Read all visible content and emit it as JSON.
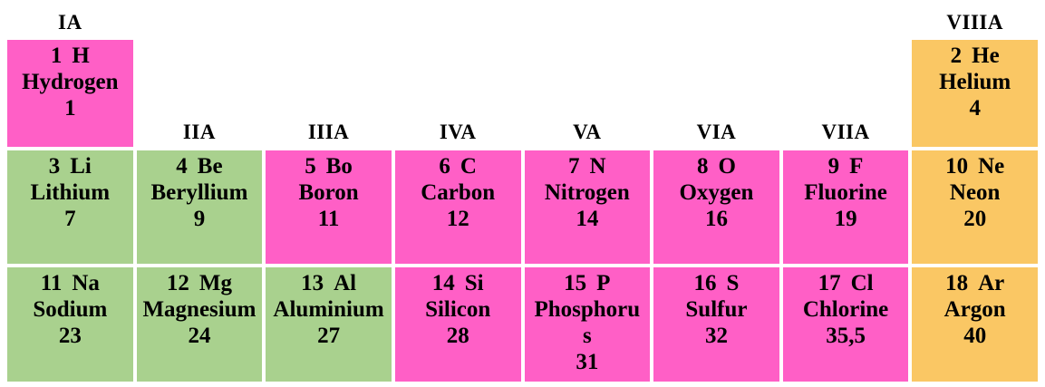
{
  "palette": {
    "pink": "#FF5FC6",
    "green": "#A9D18E",
    "orange": "#FAC764"
  },
  "text_color": "#000000",
  "group_labels": {
    "top_left": "IA",
    "top_right": "VIIIA",
    "inner": [
      "IIA",
      "IIIA",
      "IVA",
      "VA",
      "VIA",
      "VIIA"
    ]
  },
  "elements": [
    {
      "number": "1",
      "symbol": "H",
      "name": "Hydrogen",
      "mass": "1",
      "color": "pink",
      "row": 1,
      "col": 1
    },
    {
      "number": "2",
      "symbol": "He",
      "name": "Helium",
      "mass": "4",
      "color": "orange",
      "row": 1,
      "col": 8
    },
    {
      "number": "3",
      "symbol": "Li",
      "name": "Lithium",
      "mass": "7",
      "color": "green",
      "row": 2,
      "col": 1
    },
    {
      "number": "4",
      "symbol": "Be",
      "name": "Beryllium",
      "mass": "9",
      "color": "green",
      "row": 2,
      "col": 2
    },
    {
      "number": "5",
      "symbol": "Bo",
      "name": "Boron",
      "mass": "11",
      "color": "pink",
      "row": 2,
      "col": 3
    },
    {
      "number": "6",
      "symbol": "C",
      "name": "Carbon",
      "mass": "12",
      "color": "pink",
      "row": 2,
      "col": 4
    },
    {
      "number": "7",
      "symbol": "N",
      "name": "Nitrogen",
      "mass": "14",
      "color": "pink",
      "row": 2,
      "col": 5
    },
    {
      "number": "8",
      "symbol": "O",
      "name": "Oxygen",
      "mass": "16",
      "color": "pink",
      "row": 2,
      "col": 6
    },
    {
      "number": "9",
      "symbol": "F",
      "name": "Fluorine",
      "mass": "19",
      "color": "pink",
      "row": 2,
      "col": 7
    },
    {
      "number": "10",
      "symbol": "Ne",
      "name": "Neon",
      "mass": "20",
      "color": "orange",
      "row": 2,
      "col": 8
    },
    {
      "number": "11",
      "symbol": "Na",
      "name": "Sodium",
      "mass": "23",
      "color": "green",
      "row": 3,
      "col": 1
    },
    {
      "number": "12",
      "symbol": "Mg",
      "name": "Magnesium",
      "mass": "24",
      "color": "green",
      "row": 3,
      "col": 2
    },
    {
      "number": "13",
      "symbol": "Al",
      "name": "Aluminium",
      "mass": "27",
      "color": "green",
      "row": 3,
      "col": 3
    },
    {
      "number": "14",
      "symbol": "Si",
      "name": "Silicon",
      "mass": "28",
      "color": "pink",
      "row": 3,
      "col": 4
    },
    {
      "number": "15",
      "symbol": "P",
      "name": "Phosphorus",
      "mass": "31",
      "color": "pink",
      "row": 3,
      "col": 5
    },
    {
      "number": "16",
      "symbol": "S",
      "name": "Sulfur",
      "mass": "32",
      "color": "pink",
      "row": 3,
      "col": 6
    },
    {
      "number": "17",
      "symbol": "Cl",
      "name": "Chlorine",
      "mass": "35,5",
      "color": "pink",
      "row": 3,
      "col": 7
    },
    {
      "number": "18",
      "symbol": "Ar",
      "name": "Argon",
      "mass": "40",
      "color": "orange",
      "row": 3,
      "col": 8
    }
  ]
}
